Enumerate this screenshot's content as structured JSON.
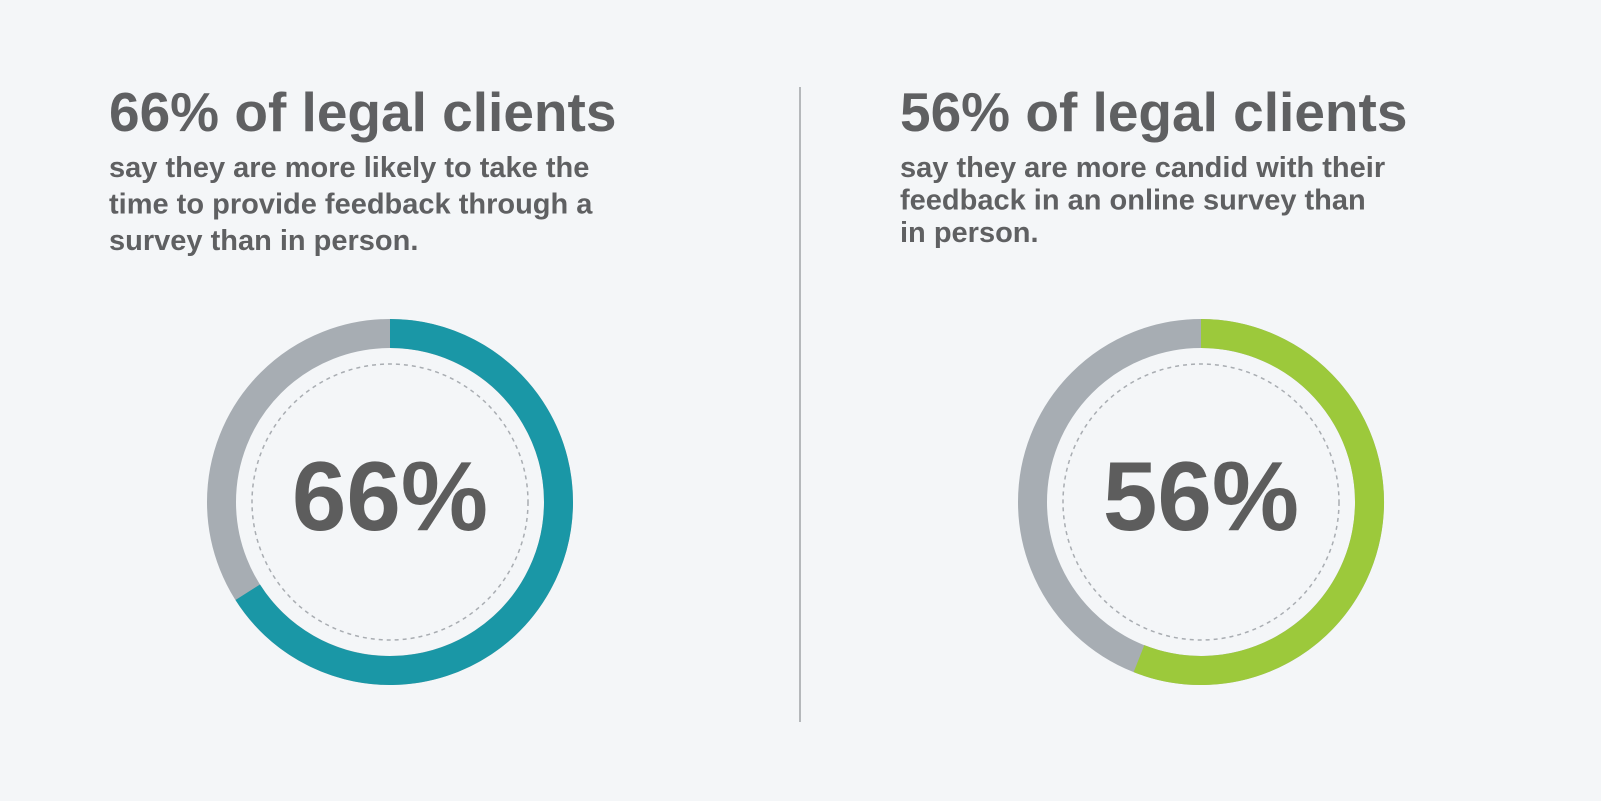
{
  "chart_data": [
    {
      "type": "donut",
      "title": "66% of legal clients",
      "subtitle": [
        "say they are more likely to take the",
        "time to provide feedback through a",
        "survey than in person."
      ],
      "values": [
        66
      ],
      "value_labels": [
        "66%"
      ],
      "color": "#1a97a6",
      "track_color": "#a7adb3",
      "ylim": [
        0,
        100
      ]
    },
    {
      "type": "donut",
      "title": "56% of legal clients",
      "subtitle": [
        "say they are more candid with their",
        "feedback in an online survey than",
        "in person."
      ],
      "values": [
        56
      ],
      "value_labels": [
        "56%"
      ],
      "color": "#9cc93b",
      "track_color": "#a7adb3",
      "ylim": [
        0,
        100
      ]
    }
  ]
}
